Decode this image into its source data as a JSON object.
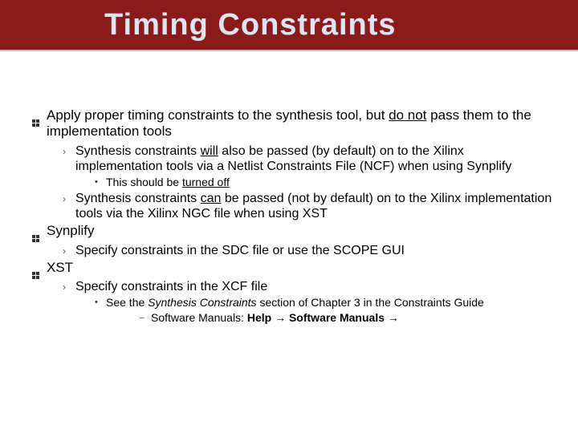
{
  "title": "Timing Constraints",
  "styles": {
    "title_bg": "#8b1a1a",
    "title_color": "#dde5f2",
    "title_fontsize": 38,
    "body_bg": "#ffffff",
    "body_fontsize": 17,
    "l2_fontsize": 16,
    "l3_fontsize": 14,
    "bullet_color": "#333333"
  },
  "l1_apply_pre": "Apply proper timing constraints to the synthesis tool, but ",
  "l1_apply_u1": "do not",
  "l1_apply_post": " pass them to the implementation tools",
  "l2_syn1_pre": "Synthesis constraints ",
  "l2_syn1_u": "will",
  "l2_syn1_post": " also be passed (by default) on to the Xilinx implementation tools via a Netlist Constraints File (NCF) when using Synplify",
  "l3_off_pre": "This should be ",
  "l3_off_u": "turned off",
  "l2_syn2_pre": "Synthesis constraints ",
  "l2_syn2_u": "can",
  "l2_syn2_post": " be passed (not by default) on to the Xilinx implementation tools via the Xilinx NGC file when using XST",
  "l1_synplify": "Synplify",
  "l2_sdc": "Specify constraints in the SDC file or use the SCOPE GUI",
  "l1_xst": "XST",
  "l2_xcf": "Specify constraints in the XCF file",
  "l3_see_pre": "See the ",
  "l3_see_i": "Synthesis Constraints",
  "l3_see_post": " section of Chapter 3 in the Constraints Guide",
  "l4_pre": "Software Manuals: ",
  "l4_b1": "Help",
  "l4_arrow": " → ",
  "l4_b2": "Software Manuals",
  "l4_arrow2": " →"
}
